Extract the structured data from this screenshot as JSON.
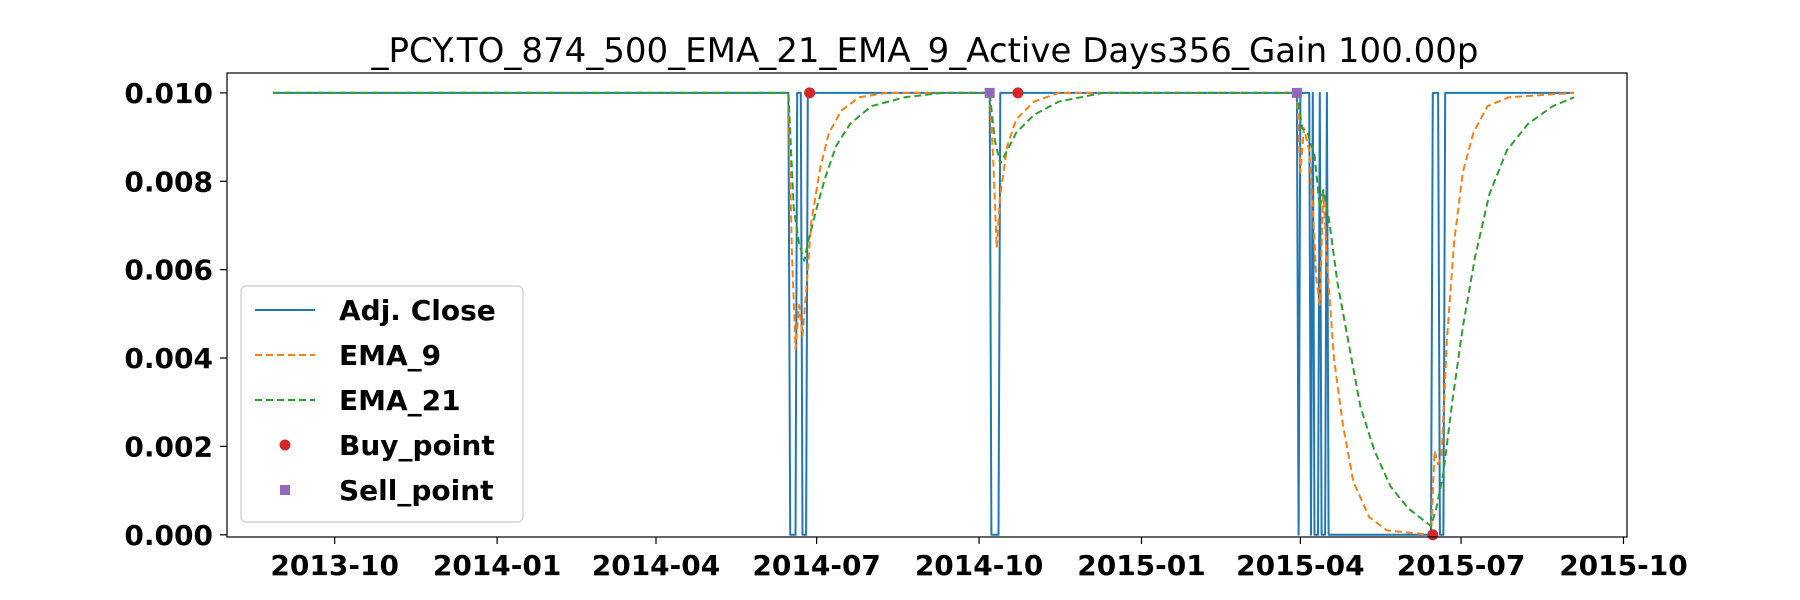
{
  "chart_data": {
    "type": "line",
    "title": "_PCY.TO_874_500_EMA_21_EMA_9_Active Days356_Gain 100.00p",
    "xlabel": "",
    "ylabel": "",
    "ylim": [
      -5e-05,
      0.01045
    ],
    "xlim": [
      "2013-08-01",
      "2015-10-03"
    ],
    "grid": false,
    "legend_position": "center-left",
    "x_ticks": [
      "2013-10",
      "2014-01",
      "2014-04",
      "2014-07",
      "2014-10",
      "2015-01",
      "2015-04",
      "2015-07",
      "2015-10"
    ],
    "y_ticks": [
      "0.000",
      "0.002",
      "0.004",
      "0.006",
      "0.008",
      "0.010"
    ],
    "colors": {
      "Adj. Close": "#1f77b4",
      "EMA_9": "#ff7f0e",
      "EMA_21": "#2ca02c",
      "Buy_point": "#d62728",
      "Sell_point": "#9467bd"
    },
    "series": [
      {
        "name": "Adj. Close",
        "style": "solid",
        "points": [
          [
            "2013-08-27",
            0.01
          ],
          [
            "2014-06-15",
            0.01
          ],
          [
            "2014-06-16",
            0.0
          ],
          [
            "2014-06-19",
            0.0
          ],
          [
            "2014-06-20",
            0.01
          ],
          [
            "2014-06-22",
            0.01
          ],
          [
            "2014-06-23",
            0.0
          ],
          [
            "2014-06-25",
            0.0
          ],
          [
            "2014-06-26",
            0.01
          ],
          [
            "2014-10-07",
            0.01
          ],
          [
            "2014-10-08",
            0.0
          ],
          [
            "2014-10-12",
            0.0
          ],
          [
            "2014-10-13",
            0.01
          ],
          [
            "2015-03-30",
            0.01
          ],
          [
            "2015-03-31",
            0.0
          ],
          [
            "2015-04-01",
            0.01
          ],
          [
            "2015-04-06",
            0.01
          ],
          [
            "2015-04-07",
            0.0
          ],
          [
            "2015-04-08",
            0.01
          ],
          [
            "2015-04-09",
            0.0
          ],
          [
            "2015-04-11",
            0.0
          ],
          [
            "2015-04-12",
            0.01
          ],
          [
            "2015-04-13",
            0.0
          ],
          [
            "2015-04-15",
            0.0
          ],
          [
            "2015-04-16",
            0.01
          ],
          [
            "2015-04-17",
            0.0
          ],
          [
            "2015-06-14",
            0.0
          ],
          [
            "2015-06-15",
            0.01
          ],
          [
            "2015-06-18",
            0.01
          ],
          [
            "2015-06-19",
            0.0
          ],
          [
            "2015-06-21",
            0.0
          ],
          [
            "2015-06-22",
            0.01
          ],
          [
            "2015-09-03",
            0.01
          ]
        ]
      },
      {
        "name": "EMA_9",
        "style": "dashed",
        "points": [
          [
            "2013-08-27",
            0.01
          ],
          [
            "2014-06-15",
            0.01
          ],
          [
            "2014-06-17",
            0.0064
          ],
          [
            "2014-06-19",
            0.0042
          ],
          [
            "2014-06-21",
            0.0052
          ],
          [
            "2014-06-23",
            0.0045
          ],
          [
            "2014-06-25",
            0.0055
          ],
          [
            "2014-06-28",
            0.0071
          ],
          [
            "2014-07-03",
            0.0083
          ],
          [
            "2014-07-08",
            0.0091
          ],
          [
            "2014-07-15",
            0.0096
          ],
          [
            "2014-07-25",
            0.0099
          ],
          [
            "2014-08-10",
            0.01
          ],
          [
            "2014-10-07",
            0.01
          ],
          [
            "2014-10-09",
            0.0085
          ],
          [
            "2014-10-11",
            0.0065
          ],
          [
            "2014-10-13",
            0.0077
          ],
          [
            "2014-10-17",
            0.0088
          ],
          [
            "2014-10-22",
            0.0094
          ],
          [
            "2014-11-01",
            0.0098
          ],
          [
            "2014-11-15",
            0.01
          ],
          [
            "2015-03-30",
            0.01
          ],
          [
            "2015-04-01",
            0.0082
          ],
          [
            "2015-04-03",
            0.0092
          ],
          [
            "2015-04-06",
            0.0087
          ],
          [
            "2015-04-08",
            0.0074
          ],
          [
            "2015-04-10",
            0.0058
          ],
          [
            "2015-04-12",
            0.0052
          ],
          [
            "2015-04-14",
            0.0078
          ],
          [
            "2015-04-16",
            0.0062
          ],
          [
            "2015-04-20",
            0.004
          ],
          [
            "2015-04-25",
            0.0025
          ],
          [
            "2015-05-01",
            0.0012
          ],
          [
            "2015-05-10",
            0.0004
          ],
          [
            "2015-05-20",
            0.0001
          ],
          [
            "2015-06-14",
            0.0
          ],
          [
            "2015-06-16",
            0.0019
          ],
          [
            "2015-06-18",
            0.0016
          ],
          [
            "2015-06-20",
            0.0018
          ],
          [
            "2015-06-23",
            0.0044
          ],
          [
            "2015-06-27",
            0.0066
          ],
          [
            "2015-07-02",
            0.0082
          ],
          [
            "2015-07-08",
            0.0091
          ],
          [
            "2015-07-16",
            0.0097
          ],
          [
            "2015-07-28",
            0.0099
          ],
          [
            "2015-09-03",
            0.01
          ]
        ]
      },
      {
        "name": "EMA_21",
        "style": "dashed",
        "points": [
          [
            "2013-08-27",
            0.01
          ],
          [
            "2014-06-15",
            0.01
          ],
          [
            "2014-06-18",
            0.0074
          ],
          [
            "2014-06-21",
            0.0066
          ],
          [
            "2014-06-24",
            0.0062
          ],
          [
            "2014-06-26",
            0.0066
          ],
          [
            "2014-07-01",
            0.0074
          ],
          [
            "2014-07-06",
            0.0081
          ],
          [
            "2014-07-12",
            0.0088
          ],
          [
            "2014-07-20",
            0.0093
          ],
          [
            "2014-08-01",
            0.0097
          ],
          [
            "2014-08-20",
            0.0099
          ],
          [
            "2014-09-10",
            0.01
          ],
          [
            "2014-10-07",
            0.01
          ],
          [
            "2014-10-10",
            0.0089
          ],
          [
            "2014-10-13",
            0.0084
          ],
          [
            "2014-10-17",
            0.0087
          ],
          [
            "2014-10-22",
            0.0091
          ],
          [
            "2014-11-01",
            0.0095
          ],
          [
            "2014-11-15",
            0.0098
          ],
          [
            "2014-12-10",
            0.01
          ],
          [
            "2015-03-30",
            0.01
          ],
          [
            "2015-04-02",
            0.0092
          ],
          [
            "2015-04-05",
            0.0091
          ],
          [
            "2015-04-09",
            0.0086
          ],
          [
            "2015-04-12",
            0.0074
          ],
          [
            "2015-04-14",
            0.0078
          ],
          [
            "2015-04-17",
            0.0072
          ],
          [
            "2015-04-22",
            0.0057
          ],
          [
            "2015-04-28",
            0.0044
          ],
          [
            "2015-05-05",
            0.0029
          ],
          [
            "2015-05-13",
            0.0019
          ],
          [
            "2015-05-22",
            0.0011
          ],
          [
            "2015-06-01",
            0.0006
          ],
          [
            "2015-06-14",
            0.0002
          ],
          [
            "2015-06-17",
            0.0006
          ],
          [
            "2015-06-21",
            0.0014
          ],
          [
            "2015-06-26",
            0.003
          ],
          [
            "2015-07-02",
            0.0047
          ],
          [
            "2015-07-09",
            0.0063
          ],
          [
            "2015-07-17",
            0.0077
          ],
          [
            "2015-07-27",
            0.0087
          ],
          [
            "2015-08-08",
            0.0093
          ],
          [
            "2015-08-22",
            0.0097
          ],
          [
            "2015-09-03",
            0.0099
          ]
        ]
      },
      {
        "name": "Buy_point",
        "style": "marker-circle",
        "points": [
          [
            "2014-06-27",
            0.01
          ],
          [
            "2014-10-23",
            0.01
          ],
          [
            "2015-06-15",
            0.0
          ]
        ]
      },
      {
        "name": "Sell_point",
        "style": "marker-square",
        "points": [
          [
            "2014-10-07",
            0.01
          ],
          [
            "2015-03-30",
            0.01
          ]
        ]
      }
    ]
  }
}
